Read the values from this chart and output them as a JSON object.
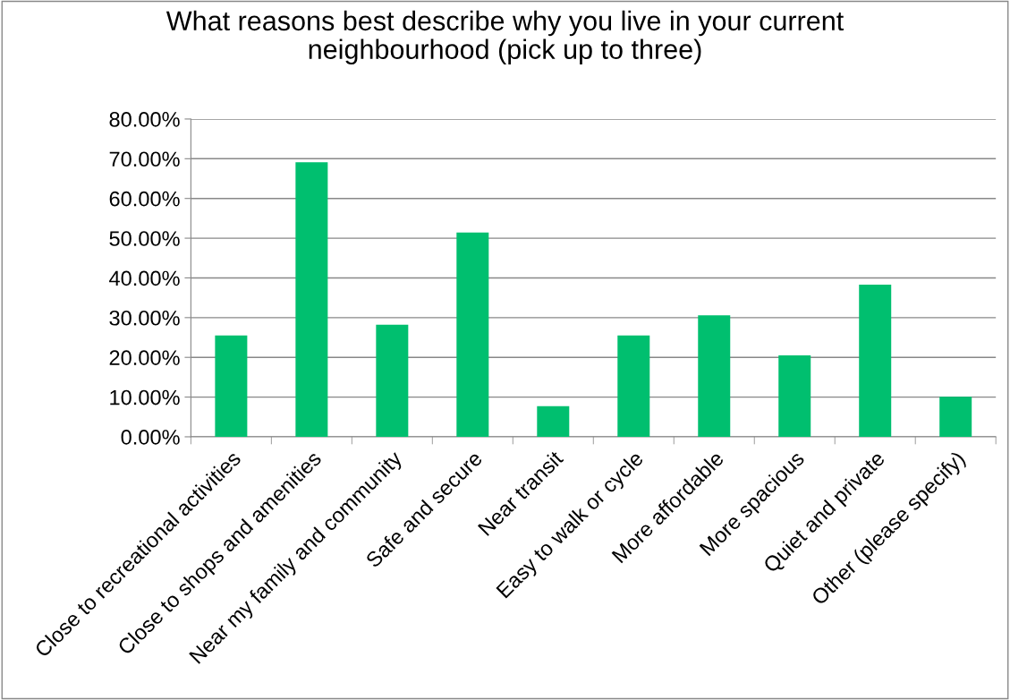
{
  "chart_data": {
    "type": "bar",
    "title": "What reasons best describe why you live in your current\nneighbourhood (pick up to three)",
    "categories": [
      "Close to recreational activities",
      "Close to shops and amenities",
      "Near my family and community",
      "Safe and secure",
      "Near transit",
      "Easy to walk or cycle",
      "More affordable",
      "More spacious",
      "Quiet and private",
      "Other (please specify)"
    ],
    "values": [
      25.5,
      69.1,
      28.2,
      51.4,
      7.7,
      25.5,
      30.6,
      20.5,
      38.3,
      10.1
    ],
    "color": "#00bf6f",
    "ylim": [
      0,
      80
    ],
    "yticks": [
      {
        "value": 0,
        "label": "0.00%"
      },
      {
        "value": 10,
        "label": "10.00%"
      },
      {
        "value": 20,
        "label": "20.00%"
      },
      {
        "value": 30,
        "label": "30.00%"
      },
      {
        "value": 40,
        "label": "40.00%"
      },
      {
        "value": 50,
        "label": "50.00%"
      },
      {
        "value": 60,
        "label": "60.00%"
      },
      {
        "value": 70,
        "label": "70.00%"
      },
      {
        "value": 80,
        "label": "80.00%"
      }
    ],
    "grid": "y"
  }
}
